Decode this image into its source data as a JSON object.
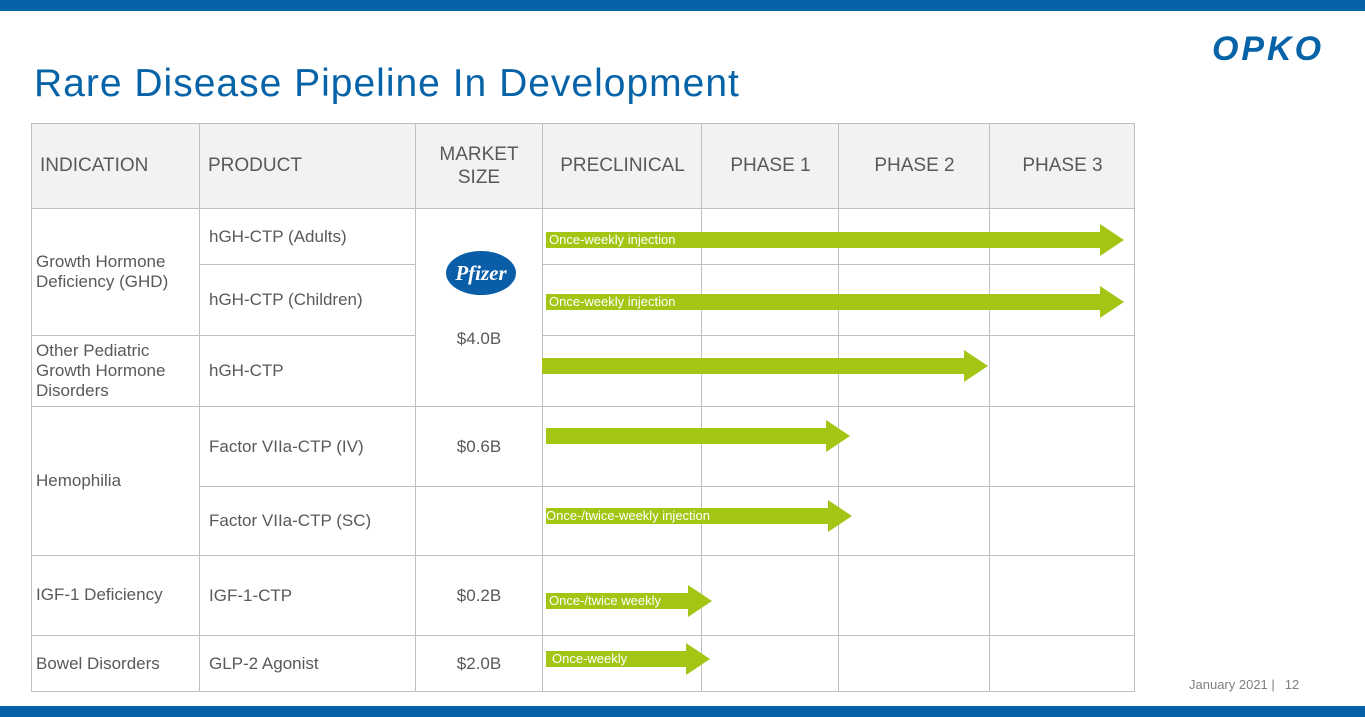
{
  "brand": {
    "logo_text": "OPKO",
    "color": "#0763a8",
    "arrow_color": "#a3c615"
  },
  "title": "Rare Disease Pipeline In Development",
  "table": {
    "headers": [
      "INDICATION",
      "PRODUCT",
      "MARKET\nSIZE",
      "PRECLINICAL",
      "PHASE 1",
      "PHASE 2",
      "PHASE 3"
    ],
    "indications": [
      "Growth Hormone Deficiency (GHD)",
      "Other Pediatric Growth Hormone Disorders",
      "Hemophilia",
      "IGF-1 Deficiency",
      "Bowel Disorders"
    ],
    "products": [
      "hGH-CTP (Adults)",
      "hGH-CTP (Children)",
      "hGH-CTP",
      "Factor VIIa-CTP (IV)",
      "Factor VIIa-CTP (SC)",
      "IGF-1-CTP",
      "GLP-2 Agonist"
    ],
    "partner_logo": "Pfizer",
    "market_sizes": [
      "$4.0B",
      "$0.6B",
      "$0.2B",
      "$2.0B"
    ],
    "arrows": [
      {
        "label": "Once-weekly injection",
        "stage": "Phase 3"
      },
      {
        "label": "Once-weekly injection",
        "stage": "Phase 3"
      },
      {
        "label": "",
        "stage": "Phase 2"
      },
      {
        "label": "",
        "stage": "Phase 1"
      },
      {
        "label": "Once-/twice-weekly injection",
        "stage": "Phase 1"
      },
      {
        "label": "Once-/twice weekly",
        "stage": "Preclinical"
      },
      {
        "label": "Once-weekly",
        "stage": "Preclinical"
      }
    ]
  },
  "footer": {
    "date": "January 2021 |",
    "page": "12"
  }
}
